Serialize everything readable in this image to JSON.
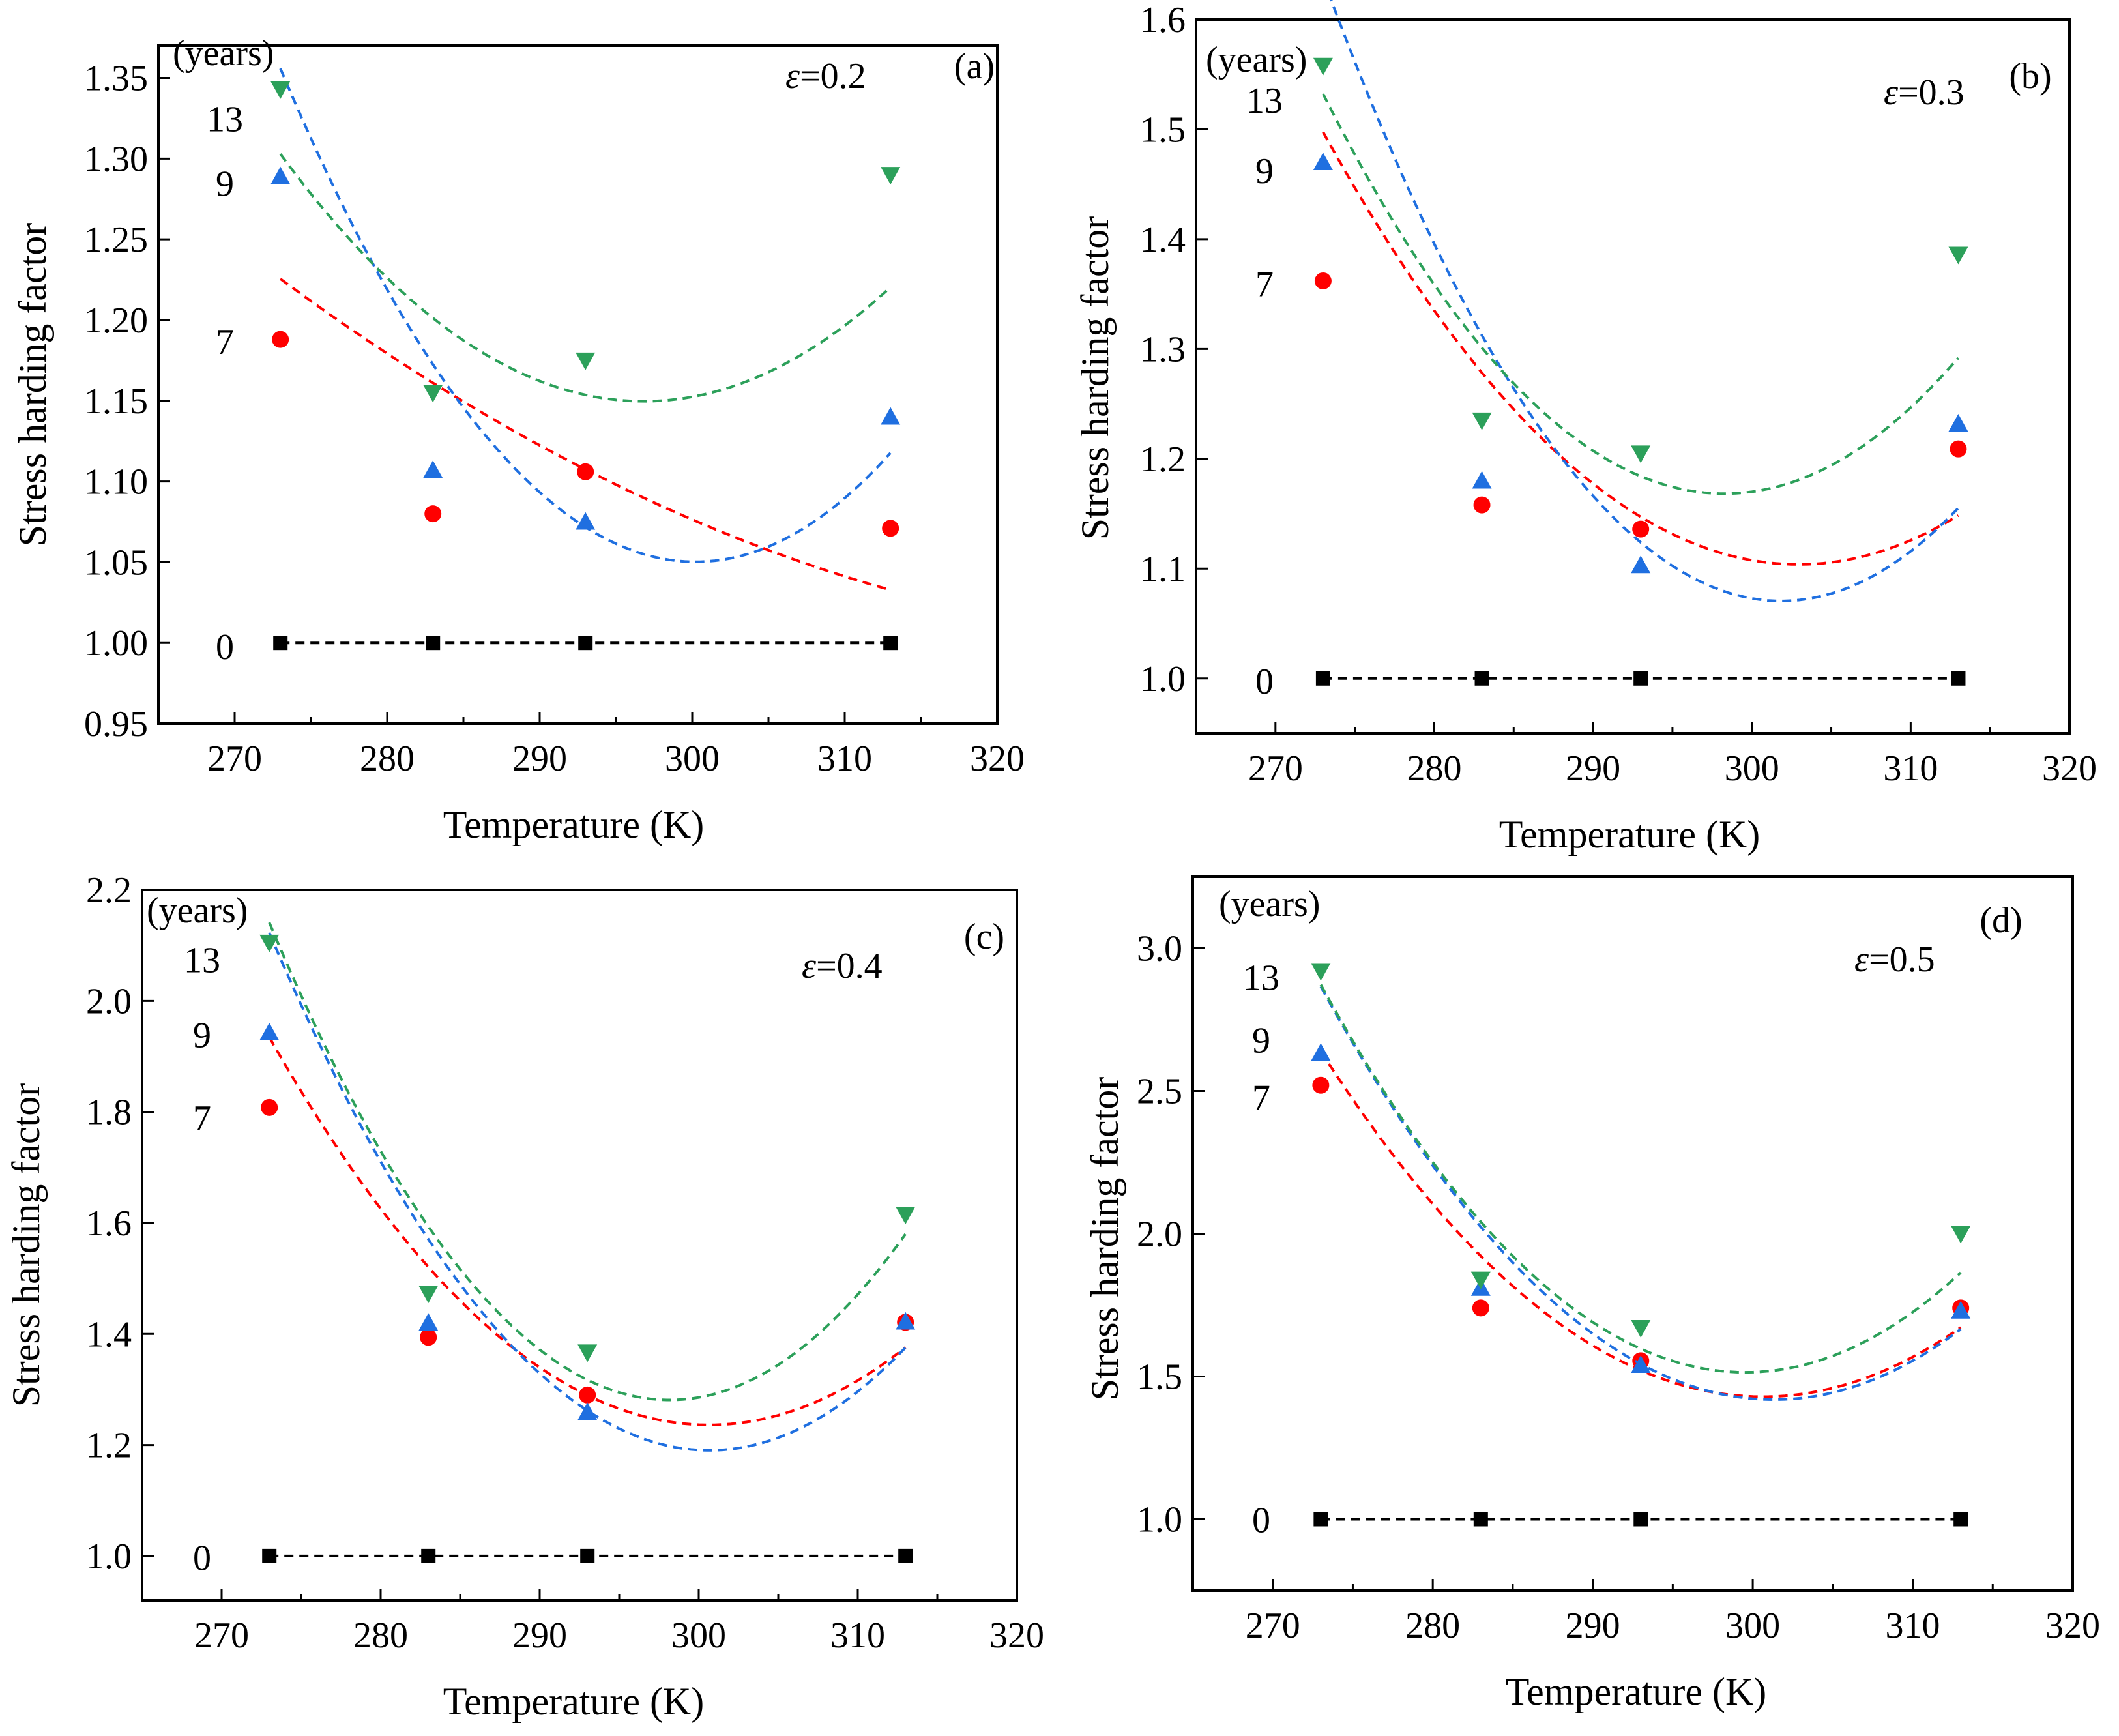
{
  "figure": {
    "description_colors": {
      "series_0": "#000000",
      "series_7": "#ff0000",
      "series_9": "#1f6fe0",
      "series_13": "#2ca05a"
    }
  },
  "chart_data": [
    {
      "panel": "(a)",
      "type": "scatter",
      "annotation_prefix": "ε",
      "annotation_value": "=0.2",
      "xlabel": "Temperature (K)",
      "ylabel": "Stress harding factor",
      "legend_title": "(years)",
      "xlim": [
        265,
        320
      ],
      "ylim": [
        0.95,
        1.37
      ],
      "xticks": [
        270,
        280,
        290,
        300,
        310,
        320
      ],
      "xtick_labels": [
        "270",
        "280",
        "290",
        "300",
        "310",
        "320"
      ],
      "yticks": [
        0.95,
        1.0,
        1.05,
        1.1,
        1.15,
        1.2,
        1.25,
        1.3,
        1.35
      ],
      "ytick_labels": [
        "0.95",
        "1.00",
        "1.05",
        "1.10",
        "1.15",
        "1.20",
        "1.25",
        "1.30",
        "1.35"
      ],
      "x": [
        273,
        283,
        293,
        313
      ],
      "series": [
        {
          "name": "0",
          "marker": "square",
          "color": "#000000",
          "values": [
            1.0,
            1.0,
            1.0,
            1.0
          ],
          "fit": [
            1.0,
            0,
            0
          ]
        },
        {
          "name": "7",
          "marker": "circle",
          "color": "#ff0000",
          "values": [
            1.188,
            1.08,
            1.106,
            1.071
          ],
          "fit": [
            1.0764,
            -0.00406,
            5.417e-05
          ]
        },
        {
          "name": "9",
          "marker": "triangle-up",
          "color": "#1f6fe0",
          "values": [
            1.289,
            1.107,
            1.075,
            1.14
          ],
          "fit": [
            1.05025,
            -0.00018,
            0.0004125
          ]
        },
        {
          "name": "13",
          "marker": "triangle-down",
          "color": "#2ca05a",
          "values": [
            1.343,
            1.155,
            1.175,
            1.29
          ],
          "fit": [
            1.1524,
            0.001717,
            0.00027
          ]
        }
      ],
      "legend_labels": [
        {
          "name": "13",
          "y": 1.325
        },
        {
          "name": "9",
          "y": 1.285
        },
        {
          "name": "7",
          "y": 1.187
        },
        {
          "name": "0",
          "y": 0.998
        }
      ]
    },
    {
      "panel": "(b)",
      "type": "scatter",
      "annotation_prefix": "ε",
      "annotation_value": "=0.3",
      "xlabel": "Temperature (K)",
      "ylabel": "Stress harding factor",
      "legend_title": "(years)",
      "xlim": [
        265,
        320
      ],
      "ylim": [
        0.95,
        1.6
      ],
      "xticks": [
        270,
        280,
        290,
        300,
        310,
        320
      ],
      "xtick_labels": [
        "270",
        "280",
        "290",
        "300",
        "310",
        "320"
      ],
      "yticks": [
        1.0,
        1.1,
        1.2,
        1.3,
        1.4,
        1.5,
        1.6
      ],
      "ytick_labels": [
        "1.0",
        "1.1",
        "1.2",
        "1.3",
        "1.4",
        "1.5",
        "1.6"
      ],
      "x": [
        273,
        283,
        293,
        313
      ],
      "series": [
        {
          "name": "0",
          "marker": "square",
          "color": "#000000",
          "values": [
            1.0,
            1.0,
            1.0,
            1.0
          ],
          "fit": [
            1.0,
            0,
            0
          ]
        },
        {
          "name": "7",
          "marker": "circle",
          "color": "#ff0000",
          "values": [
            1.362,
            1.158,
            1.136,
            1.209
          ],
          "fit": [
            1.10763,
            -0.002575,
            0.0004396
          ]
        },
        {
          "name": "9",
          "marker": "triangle-up",
          "color": "#1f6fe0",
          "values": [
            1.47,
            1.18,
            1.103,
            1.232
          ],
          "fit": [
            1.0729,
            -0.00252,
            0.000681
          ]
        },
        {
          "name": "13",
          "marker": "triangle-down",
          "color": "#2ca05a",
          "values": [
            1.558,
            1.235,
            1.205,
            1.386
          ],
          "fit": [
            1.17,
            0.00197,
            0.00057
          ]
        }
      ],
      "legend_labels": [
        {
          "name": "13",
          "y": 1.527
        },
        {
          "name": "9",
          "y": 1.463
        },
        {
          "name": "7",
          "y": 1.36
        },
        {
          "name": "0",
          "y": 0.998
        }
      ]
    },
    {
      "panel": "(c)",
      "type": "scatter",
      "annotation_prefix": "ε",
      "annotation_value": "=0.4",
      "xlabel": "Temperature (K)",
      "ylabel": "Stress harding factor",
      "legend_title": "(years)",
      "xlim": [
        265,
        320
      ],
      "ylim": [
        0.92,
        2.2
      ],
      "xticks": [
        270,
        280,
        290,
        300,
        310,
        320
      ],
      "xtick_labels": [
        "270",
        "280",
        "290",
        "300",
        "310",
        "320"
      ],
      "yticks": [
        1.0,
        1.2,
        1.4,
        1.6,
        1.8,
        2.0,
        2.2
      ],
      "ytick_labels": [
        "1.0",
        "1.2",
        "1.4",
        "1.6",
        "1.8",
        "2.0",
        "2.2"
      ],
      "x": [
        273,
        283,
        293,
        313
      ],
      "series": [
        {
          "name": "0",
          "marker": "square",
          "color": "#000000",
          "values": [
            1.0,
            1.0,
            1.0,
            1.0
          ],
          "fit": [
            1.0,
            0,
            0
          ]
        },
        {
          "name": "7",
          "marker": "circle",
          "color": "#ff0000",
          "values": [
            1.808,
            1.394,
            1.29,
            1.421
          ],
          "fit": [
            1.2365,
            -0.001175,
            0.000914
          ]
        },
        {
          "name": "9",
          "marker": "triangle-up",
          "color": "#1f6fe0",
          "values": [
            1.943,
            1.42,
            1.259,
            1.422
          ],
          "fit": [
            1.1908,
            -0.00163,
            0.001218
          ]
        },
        {
          "name": "13",
          "marker": "triangle-down",
          "color": "#2ca05a",
          "values": [
            2.105,
            1.473,
            1.367,
            1.615
          ],
          "fit": [
            1.2856,
            0.00498,
            0.001358
          ]
        }
      ],
      "legend_labels": [
        {
          "name": "13",
          "y": 2.075
        },
        {
          "name": "9",
          "y": 1.94
        },
        {
          "name": "7",
          "y": 1.79
        },
        {
          "name": "0",
          "y": 0.998
        }
      ]
    },
    {
      "panel": "(d)",
      "type": "scatter",
      "annotation_prefix": "ε",
      "annotation_value": "=0.5",
      "xlabel": "Temperature (K)",
      "ylabel": "Stress harding factor",
      "legend_title": "(years)",
      "xlim": [
        265,
        320
      ],
      "ylim": [
        0.75,
        3.25
      ],
      "xticks": [
        270,
        280,
        290,
        300,
        310,
        320
      ],
      "xtick_labels": [
        "270",
        "280",
        "290",
        "300",
        "310",
        "320"
      ],
      "yticks": [
        1.0,
        1.5,
        2.0,
        2.5,
        3.0
      ],
      "ytick_labels": [
        "1.0",
        "1.5",
        "2.0",
        "2.5",
        "3.0"
      ],
      "x": [
        273,
        283,
        293,
        313
      ],
      "series": [
        {
          "name": "0",
          "marker": "square",
          "color": "#000000",
          "values": [
            1.0,
            1.0,
            1.0,
            1.0
          ],
          "fit": [
            1.0,
            0,
            0
          ]
        },
        {
          "name": "7",
          "marker": "circle",
          "color": "#ff0000",
          "values": [
            2.52,
            1.74,
            1.555,
            1.74
          ],
          "fit": [
            1.4298,
            -0.002,
            0.001585
          ]
        },
        {
          "name": "9",
          "marker": "triangle-up",
          "color": "#1f6fe0",
          "values": [
            2.633,
            1.81,
            1.54,
            1.73
          ],
          "fit": [
            1.422,
            -0.00473,
            0.001805
          ]
        },
        {
          "name": "13",
          "marker": "triangle-down",
          "color": "#2ca05a",
          "values": [
            2.92,
            1.84,
            1.67,
            2.0
          ],
          "fit": [
            1.515,
            0.00177,
            0.001927
          ]
        }
      ],
      "legend_labels": [
        {
          "name": "13",
          "y": 2.9
        },
        {
          "name": "9",
          "y": 2.68
        },
        {
          "name": "7",
          "y": 2.48
        },
        {
          "name": "0",
          "y": 1.0
        }
      ]
    }
  ]
}
